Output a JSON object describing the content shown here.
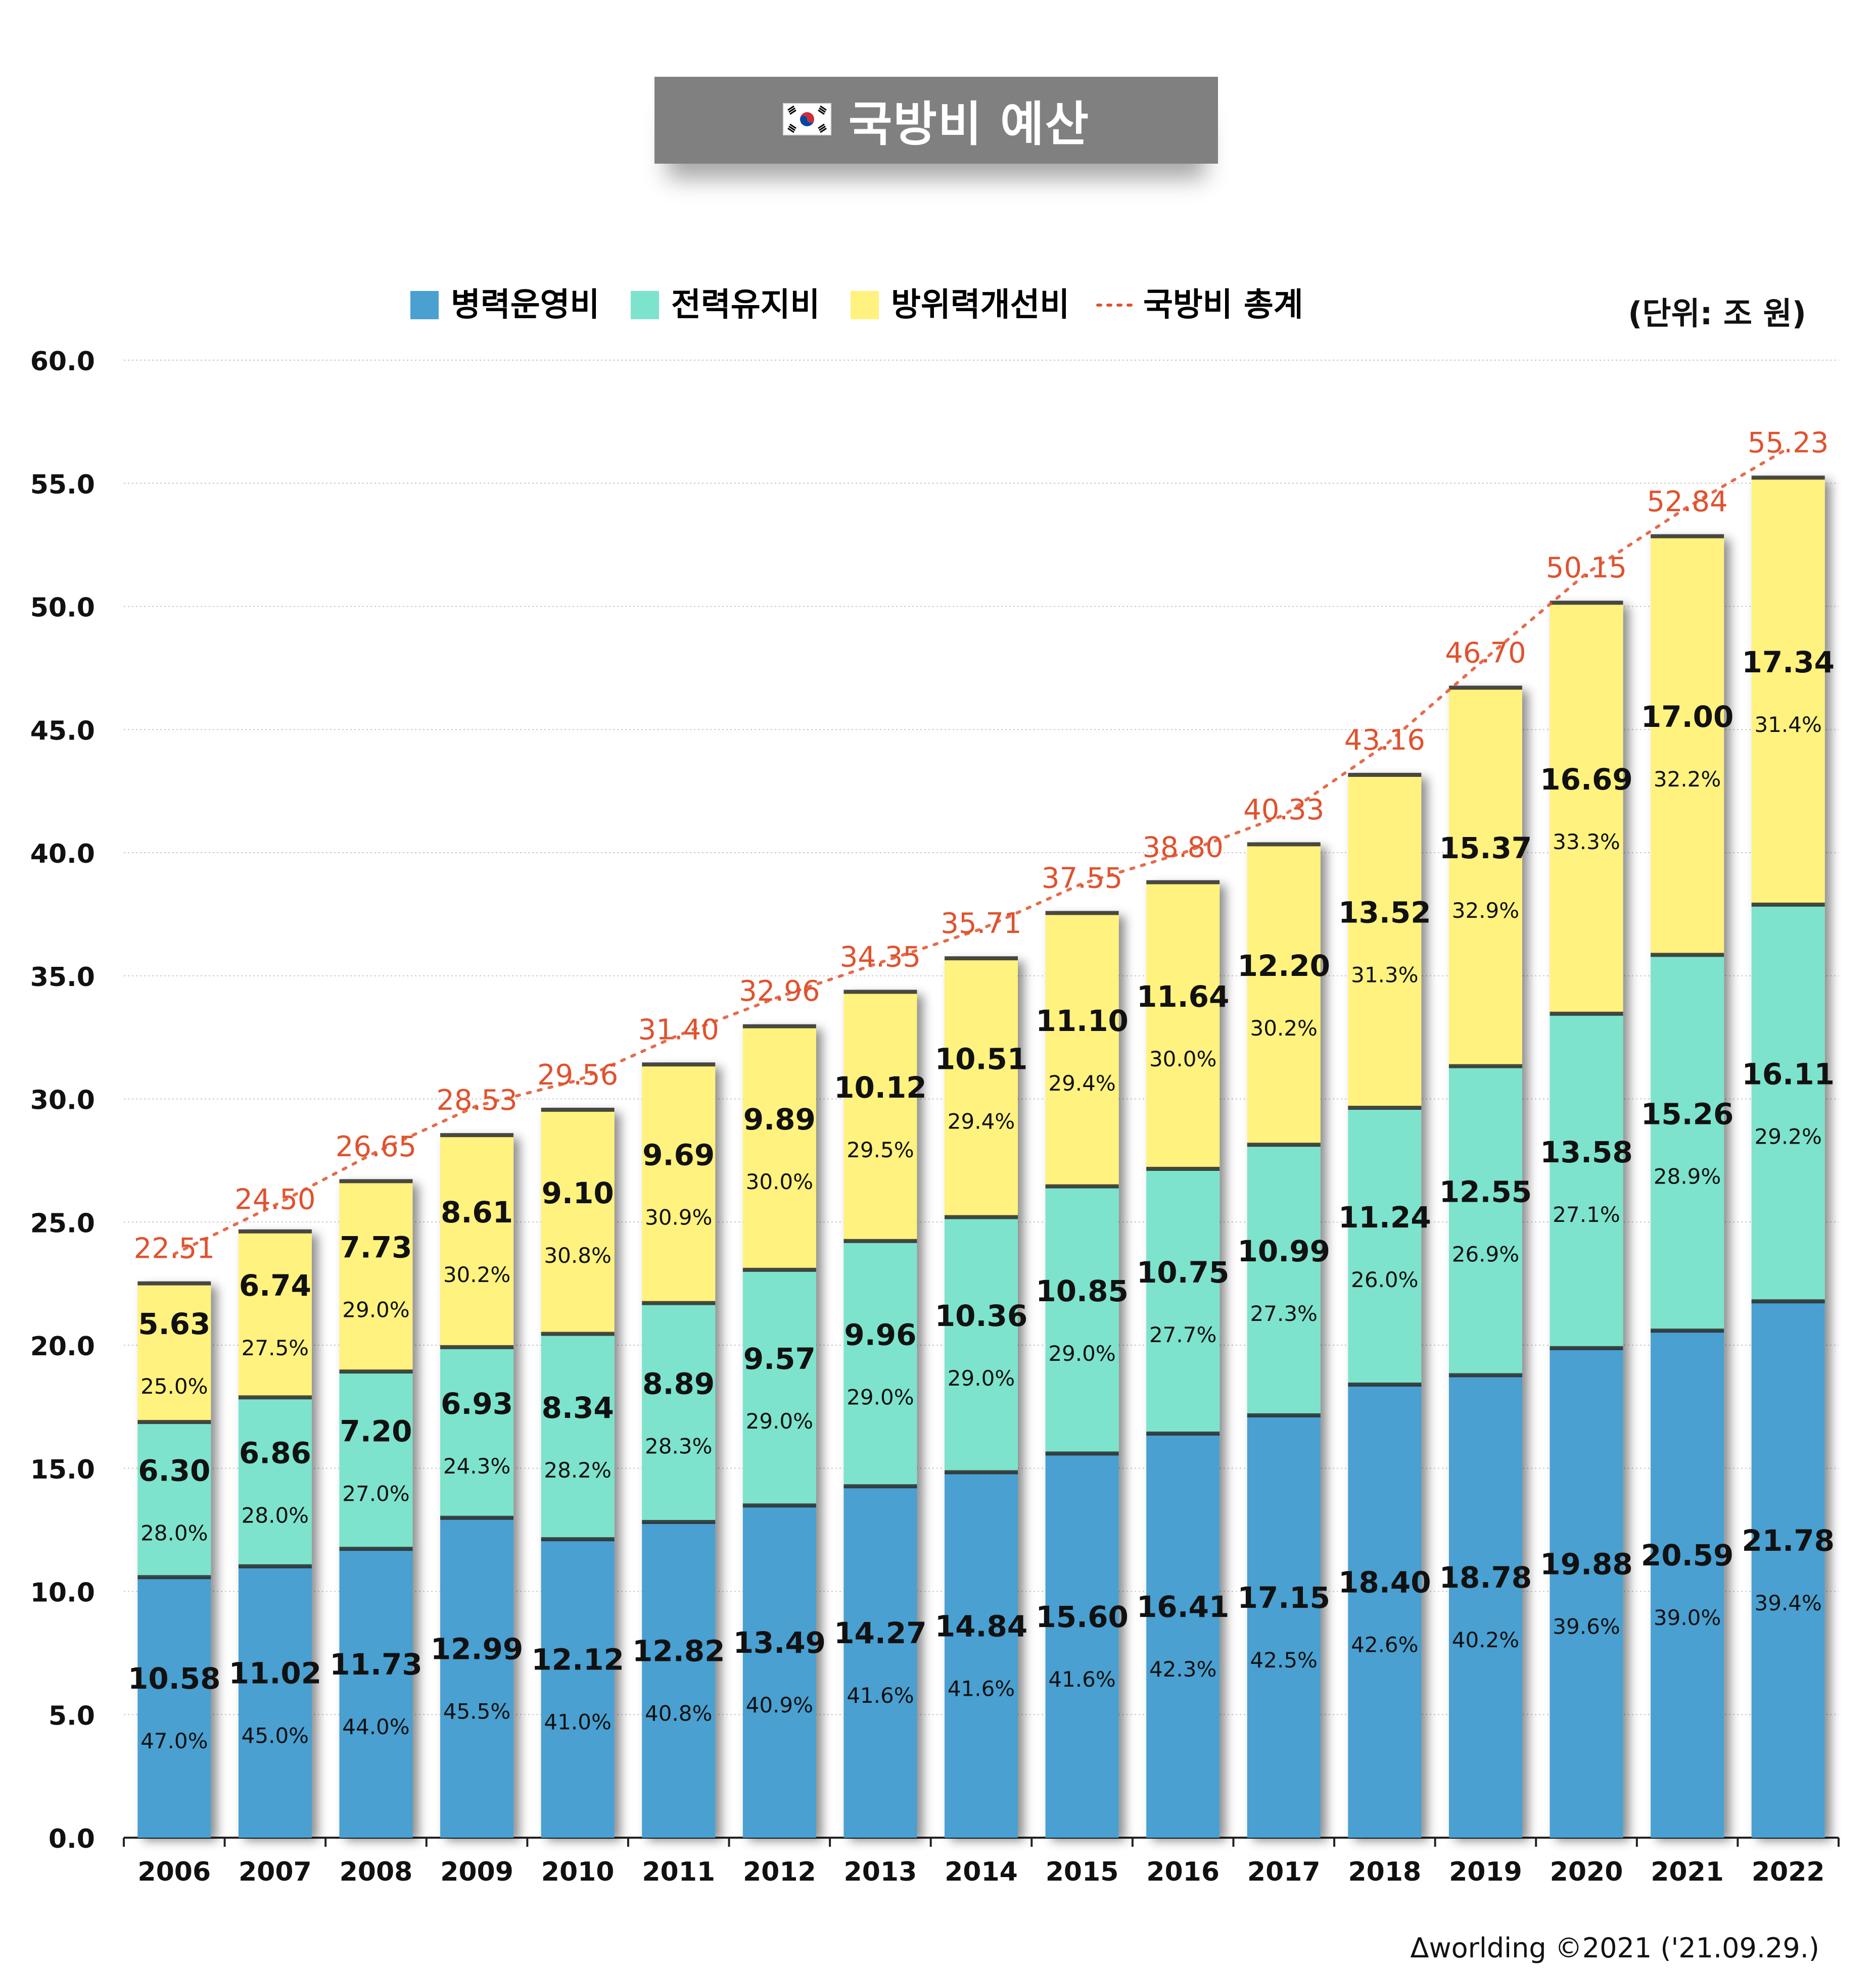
{
  "title": "국방비 예산",
  "flag_icon": "korea-flag-icon",
  "unit": "(단위: 조 원)",
  "credit": "Δworlding ©2021 ('21.09.29.)",
  "colors": {
    "personnel": "#4aa0d1",
    "maintenance": "#7de3cc",
    "improvement": "#fff27f",
    "total": "#e0522e",
    "title_bg": "#808080"
  },
  "chart_data": {
    "type": "bar",
    "stacked": true,
    "title": "국방비 예산",
    "unit": "(단위: 조 원)",
    "ylim": [
      0,
      60
    ],
    "yticks": [
      "0.0",
      "5.0",
      "10.0",
      "15.0",
      "20.0",
      "25.0",
      "30.0",
      "35.0",
      "40.0",
      "45.0",
      "50.0",
      "55.0",
      "60.0"
    ],
    "grid": true,
    "legend_position": "top",
    "categories": [
      "2006",
      "2007",
      "2008",
      "2009",
      "2010",
      "2011",
      "2012",
      "2013",
      "2014",
      "2015",
      "2016",
      "2017",
      "2018",
      "2019",
      "2020",
      "2021",
      "2022"
    ],
    "series": [
      {
        "name": "병력운영비",
        "values": [
          "10.58",
          "11.02",
          "11.73",
          "12.99",
          "12.12",
          "12.82",
          "13.49",
          "14.27",
          "14.84",
          "15.60",
          "16.41",
          "17.15",
          "18.40",
          "18.78",
          "19.88",
          "20.59",
          "21.78"
        ],
        "percents": [
          "47.0%",
          "45.0%",
          "44.0%",
          "45.5%",
          "41.0%",
          "40.8%",
          "40.9%",
          "41.6%",
          "41.6%",
          "41.6%",
          "42.3%",
          "42.5%",
          "42.6%",
          "40.2%",
          "39.6%",
          "39.0%",
          "39.4%"
        ]
      },
      {
        "name": "전력유지비",
        "values": [
          "6.30",
          "6.86",
          "7.20",
          "6.93",
          "8.34",
          "8.89",
          "9.57",
          "9.96",
          "10.36",
          "10.85",
          "10.75",
          "10.99",
          "11.24",
          "12.55",
          "13.58",
          "15.26",
          "16.11"
        ],
        "percents": [
          "28.0%",
          "28.0%",
          "27.0%",
          "24.3%",
          "28.2%",
          "28.3%",
          "29.0%",
          "29.0%",
          "29.0%",
          "29.0%",
          "27.7%",
          "27.3%",
          "26.0%",
          "26.9%",
          "27.1%",
          "28.9%",
          "29.2%"
        ]
      },
      {
        "name": "방위력개선비",
        "values": [
          "5.63",
          "6.74",
          "7.73",
          "8.61",
          "9.10",
          "9.69",
          "9.89",
          "10.12",
          "10.51",
          "11.10",
          "11.64",
          "12.20",
          "13.52",
          "15.37",
          "16.69",
          "17.00",
          "17.34"
        ],
        "percents": [
          "25.0%",
          "27.5%",
          "29.0%",
          "30.2%",
          "30.8%",
          "30.9%",
          "30.0%",
          "29.5%",
          "29.4%",
          "29.4%",
          "30.0%",
          "30.2%",
          "31.3%",
          "32.9%",
          "33.3%",
          "32.2%",
          "31.4%"
        ]
      }
    ],
    "total": {
      "name": "국방비 총계",
      "values": [
        "22.51",
        "24.50",
        "26.65",
        "28.53",
        "29.56",
        "31.40",
        "32.96",
        "34.35",
        "35.71",
        "37.55",
        "38.80",
        "40.33",
        "43.16",
        "46.70",
        "50.15",
        "52.84",
        "55.23"
      ]
    }
  }
}
